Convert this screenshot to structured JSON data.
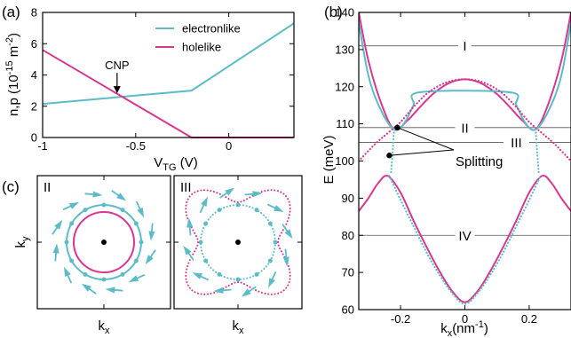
{
  "panels": [
    {
      "id": "a",
      "label": "(a)",
      "type": "line",
      "xlabel": "V",
      "xlabel_sub": "TG",
      "xlabel_unit": " (V)",
      "ylabel": "n,p (10",
      "ylabel_sup": "-15",
      "ylabel_unit": " m",
      "ylabel_sup2": "-2",
      "ylabel_close": ")",
      "xlim": [
        -1.0,
        0.35
      ],
      "ylim": [
        0,
        8
      ],
      "xticks": [
        -1.0,
        -0.5,
        0.0
      ],
      "xtick_labels": [
        "-1",
        "-0.5",
        "0"
      ],
      "yticks": [
        0,
        2,
        4,
        6,
        8
      ],
      "ytick_labels": [
        "0",
        "2",
        "4",
        "6",
        "8"
      ],
      "legend_position": "top-right",
      "series": [
        {
          "name": "electronlike",
          "color": "#5bbcc8",
          "x": [
            -1.0,
            -0.2,
            0.35
          ],
          "y": [
            2.15,
            3.0,
            7.3
          ]
        },
        {
          "name": "holelike",
          "color": "#d9368f",
          "x": [
            -1.0,
            -0.2,
            0.35
          ],
          "y": [
            5.6,
            0.0,
            0.0
          ]
        }
      ],
      "annotation": {
        "text": "CNP",
        "x": -0.6,
        "y": 2.6
      }
    },
    {
      "id": "b",
      "label": "(b)",
      "type": "line",
      "xlabel": "k",
      "xlabel_sub": "x",
      "xlabel_unit": "(nm",
      "xlabel_sup": "-1",
      "xlabel_close": ")",
      "ylabel": "E (meV)",
      "xlim": [
        -0.33,
        0.33
      ],
      "ylim": [
        60,
        140
      ],
      "xticks": [
        -0.2,
        0.0,
        0.2
      ],
      "xtick_labels": [
        "-0.2",
        "0",
        "0.2"
      ],
      "yticks": [
        60,
        70,
        80,
        90,
        100,
        110,
        120,
        130,
        140
      ],
      "ytick_labels": [
        "60",
        "70",
        "80",
        "90",
        "100",
        "110",
        "120",
        "130",
        "140"
      ],
      "reference_levels": [
        {
          "label": "I",
          "E": 131
        },
        {
          "label": "II",
          "E": 109
        },
        {
          "label": "III",
          "E": 105
        },
        {
          "label": "IV",
          "E": 80
        }
      ],
      "annotation": {
        "text": "Splitting",
        "points": [
          [
            -0.21,
            109
          ],
          [
            -0.235,
            101.5
          ]
        ]
      },
      "series": [
        {
          "color": "#d9368f",
          "style": "solid",
          "x": [
            -0.33,
            -0.3,
            -0.27,
            -0.24,
            -0.2,
            -0.16,
            -0.12,
            -0.08,
            -0.04,
            0.0,
            0.04,
            0.08,
            0.12,
            0.16,
            0.2,
            0.24,
            0.27,
            0.3,
            0.33
          ],
          "y": [
            86.5,
            90,
            94,
            96,
            91.5,
            84,
            77,
            70.5,
            65,
            62,
            65,
            70.5,
            77,
            84,
            91.5,
            96,
            94,
            90,
            86.5
          ]
        },
        {
          "color": "#d9368f",
          "style": "solid",
          "x": [
            -0.33,
            -0.3,
            -0.26,
            -0.22,
            -0.18,
            -0.14,
            -0.1,
            -0.06,
            -0.03,
            0.0,
            0.03,
            0.06,
            0.1,
            0.14,
            0.18,
            0.22,
            0.26,
            0.3,
            0.33
          ],
          "y": [
            140,
            127,
            115.5,
            108.5,
            110.8,
            114.5,
            118,
            120.5,
            121.6,
            122,
            121.6,
            120.5,
            118,
            114.5,
            110.8,
            108.5,
            115.5,
            127,
            140
          ]
        },
        {
          "color": "#5bbcc8",
          "style": "solid",
          "x": [
            -0.335,
            -0.3,
            -0.26,
            -0.22,
            -0.19,
            -0.16,
            -0.14,
            0.14,
            0.16,
            0.19,
            0.22,
            0.26,
            0.3,
            0.335
          ],
          "y": [
            140,
            123,
            113.5,
            108.5,
            110,
            115,
            118.5,
            118.5,
            115,
            110,
            108.5,
            113.5,
            123,
            140
          ]
        },
        {
          "color": "#d9368f",
          "style": "dotted",
          "x": [
            -0.33,
            -0.28,
            -0.24,
            -0.2,
            -0.16,
            -0.12,
            -0.08,
            -0.04,
            0.0,
            0.04,
            0.08,
            0.12,
            0.16,
            0.2,
            0.24,
            0.28,
            0.33
          ],
          "y": [
            100,
            104.5,
            107.5,
            110.5,
            114.5,
            118,
            120.3,
            121.6,
            122,
            121.6,
            120.3,
            118,
            114.5,
            110.5,
            107.5,
            104.5,
            100
          ]
        },
        {
          "color": "#5bbcc8",
          "style": "dotted",
          "x": [
            -0.235,
            -0.2,
            -0.16,
            -0.12,
            -0.08,
            -0.04,
            0.0,
            0.04,
            0.08,
            0.12,
            0.16,
            0.2,
            0.235
          ],
          "y": [
            96,
            89.5,
            82.5,
            75.5,
            69.5,
            64.5,
            61.5,
            64.5,
            69.5,
            75.5,
            82.5,
            89.5,
            96
          ]
        },
        {
          "color": "#5bbcc8",
          "style": "dotted",
          "x": [
            -0.22,
            -0.225,
            -0.23
          ],
          "y": [
            108.5,
            102,
            96.5
          ]
        },
        {
          "color": "#5bbcc8",
          "style": "dotted",
          "x": [
            0.22,
            0.225,
            0.23
          ],
          "y": [
            108.5,
            102,
            96.5
          ]
        }
      ]
    },
    {
      "id": "c",
      "label": "(c)",
      "type": "diagram",
      "xlabel": "k",
      "xlabel_sub": "x",
      "ylabel": "k",
      "ylabel_sub": "y",
      "subpanels": [
        {
          "label": "II",
          "contours": [
            "cyan solid circle",
            "magenta solid circle"
          ],
          "arrows": 12
        },
        {
          "label": "III",
          "contours": [
            "cyan dotted circle",
            "magenta dotted star"
          ],
          "arrows": 12
        }
      ]
    }
  ],
  "chart_data": [
    {
      "type": "line",
      "title": "",
      "xlabel": "V_TG (V)",
      "ylabel": "n,p (10^-15 m^-2)",
      "xlim": [
        -1.0,
        0.35
      ],
      "ylim": [
        0,
        8
      ],
      "series": [
        {
          "name": "electronlike",
          "x": [
            -1.0,
            -0.2,
            0.35
          ],
          "y": [
            2.15,
            3.0,
            7.3
          ]
        },
        {
          "name": "holelike",
          "x": [
            -1.0,
            -0.2,
            0.35
          ],
          "y": [
            5.6,
            0.0,
            0.0
          ]
        }
      ],
      "annotations": [
        "CNP"
      ]
    },
    {
      "type": "line",
      "title": "",
      "xlabel": "k_x (nm^-1)",
      "ylabel": "E (meV)",
      "xlim": [
        -0.33,
        0.33
      ],
      "ylim": [
        60,
        140
      ],
      "series": [
        {
          "x": [
            -0.33,
            -0.24,
            0.0,
            0.24,
            0.33
          ],
          "y": [
            86.5,
            96,
            62,
            96,
            86.5
          ]
        },
        {
          "x": [
            -0.3,
            -0.22,
            0.0,
            0.22,
            0.3
          ],
          "y": [
            127,
            108.5,
            122,
            108.5,
            127
          ]
        }
      ],
      "reference_levels": {
        "I": 131,
        "II": 109,
        "III": 105,
        "IV": 80
      },
      "annotations": [
        "Splitting"
      ]
    }
  ]
}
